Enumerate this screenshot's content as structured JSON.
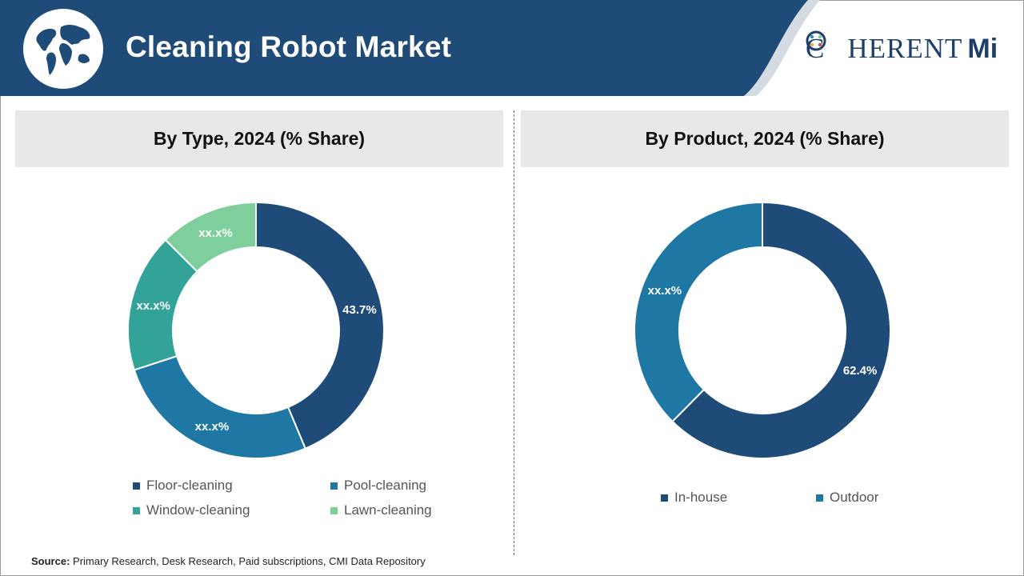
{
  "header": {
    "title": "Cleaning Robot Market",
    "logo_text": "C",
    "logo_text_rest": "HERENT",
    "logo_mi": "Mi",
    "banner_color": "#1e4b78"
  },
  "source": {
    "label": "Source:",
    "text": "Primary Research, Desk Research, Paid subscriptions, CMI Data Repository"
  },
  "chart_data": [
    {
      "type": "pie",
      "donut": true,
      "title": "By Type, 2024 (% Share)",
      "series": [
        {
          "name": "Floor-cleaning",
          "value": 43.7,
          "label": "43.7%",
          "color": "#1e4b78"
        },
        {
          "name": "Pool-cleaning",
          "value": 26.3,
          "label": "xx.x%",
          "color": "#1f77a3"
        },
        {
          "name": "Window-cleaning",
          "value": 17.5,
          "label": "xx.x%",
          "color": "#33a39a"
        },
        {
          "name": "Lawn-cleaning",
          "value": 12.5,
          "label": "xx.x%",
          "color": "#7fcf9c"
        }
      ],
      "legend": "bottom"
    },
    {
      "type": "pie",
      "donut": true,
      "title": "By Product, 2024 (% Share)",
      "series": [
        {
          "name": "In-house",
          "value": 62.4,
          "label": "62.4%",
          "color": "#1e4b78"
        },
        {
          "name": "Outdoor",
          "value": 37.6,
          "label": "xx.x%",
          "color": "#1f77a3"
        }
      ],
      "legend": "bottom"
    }
  ]
}
